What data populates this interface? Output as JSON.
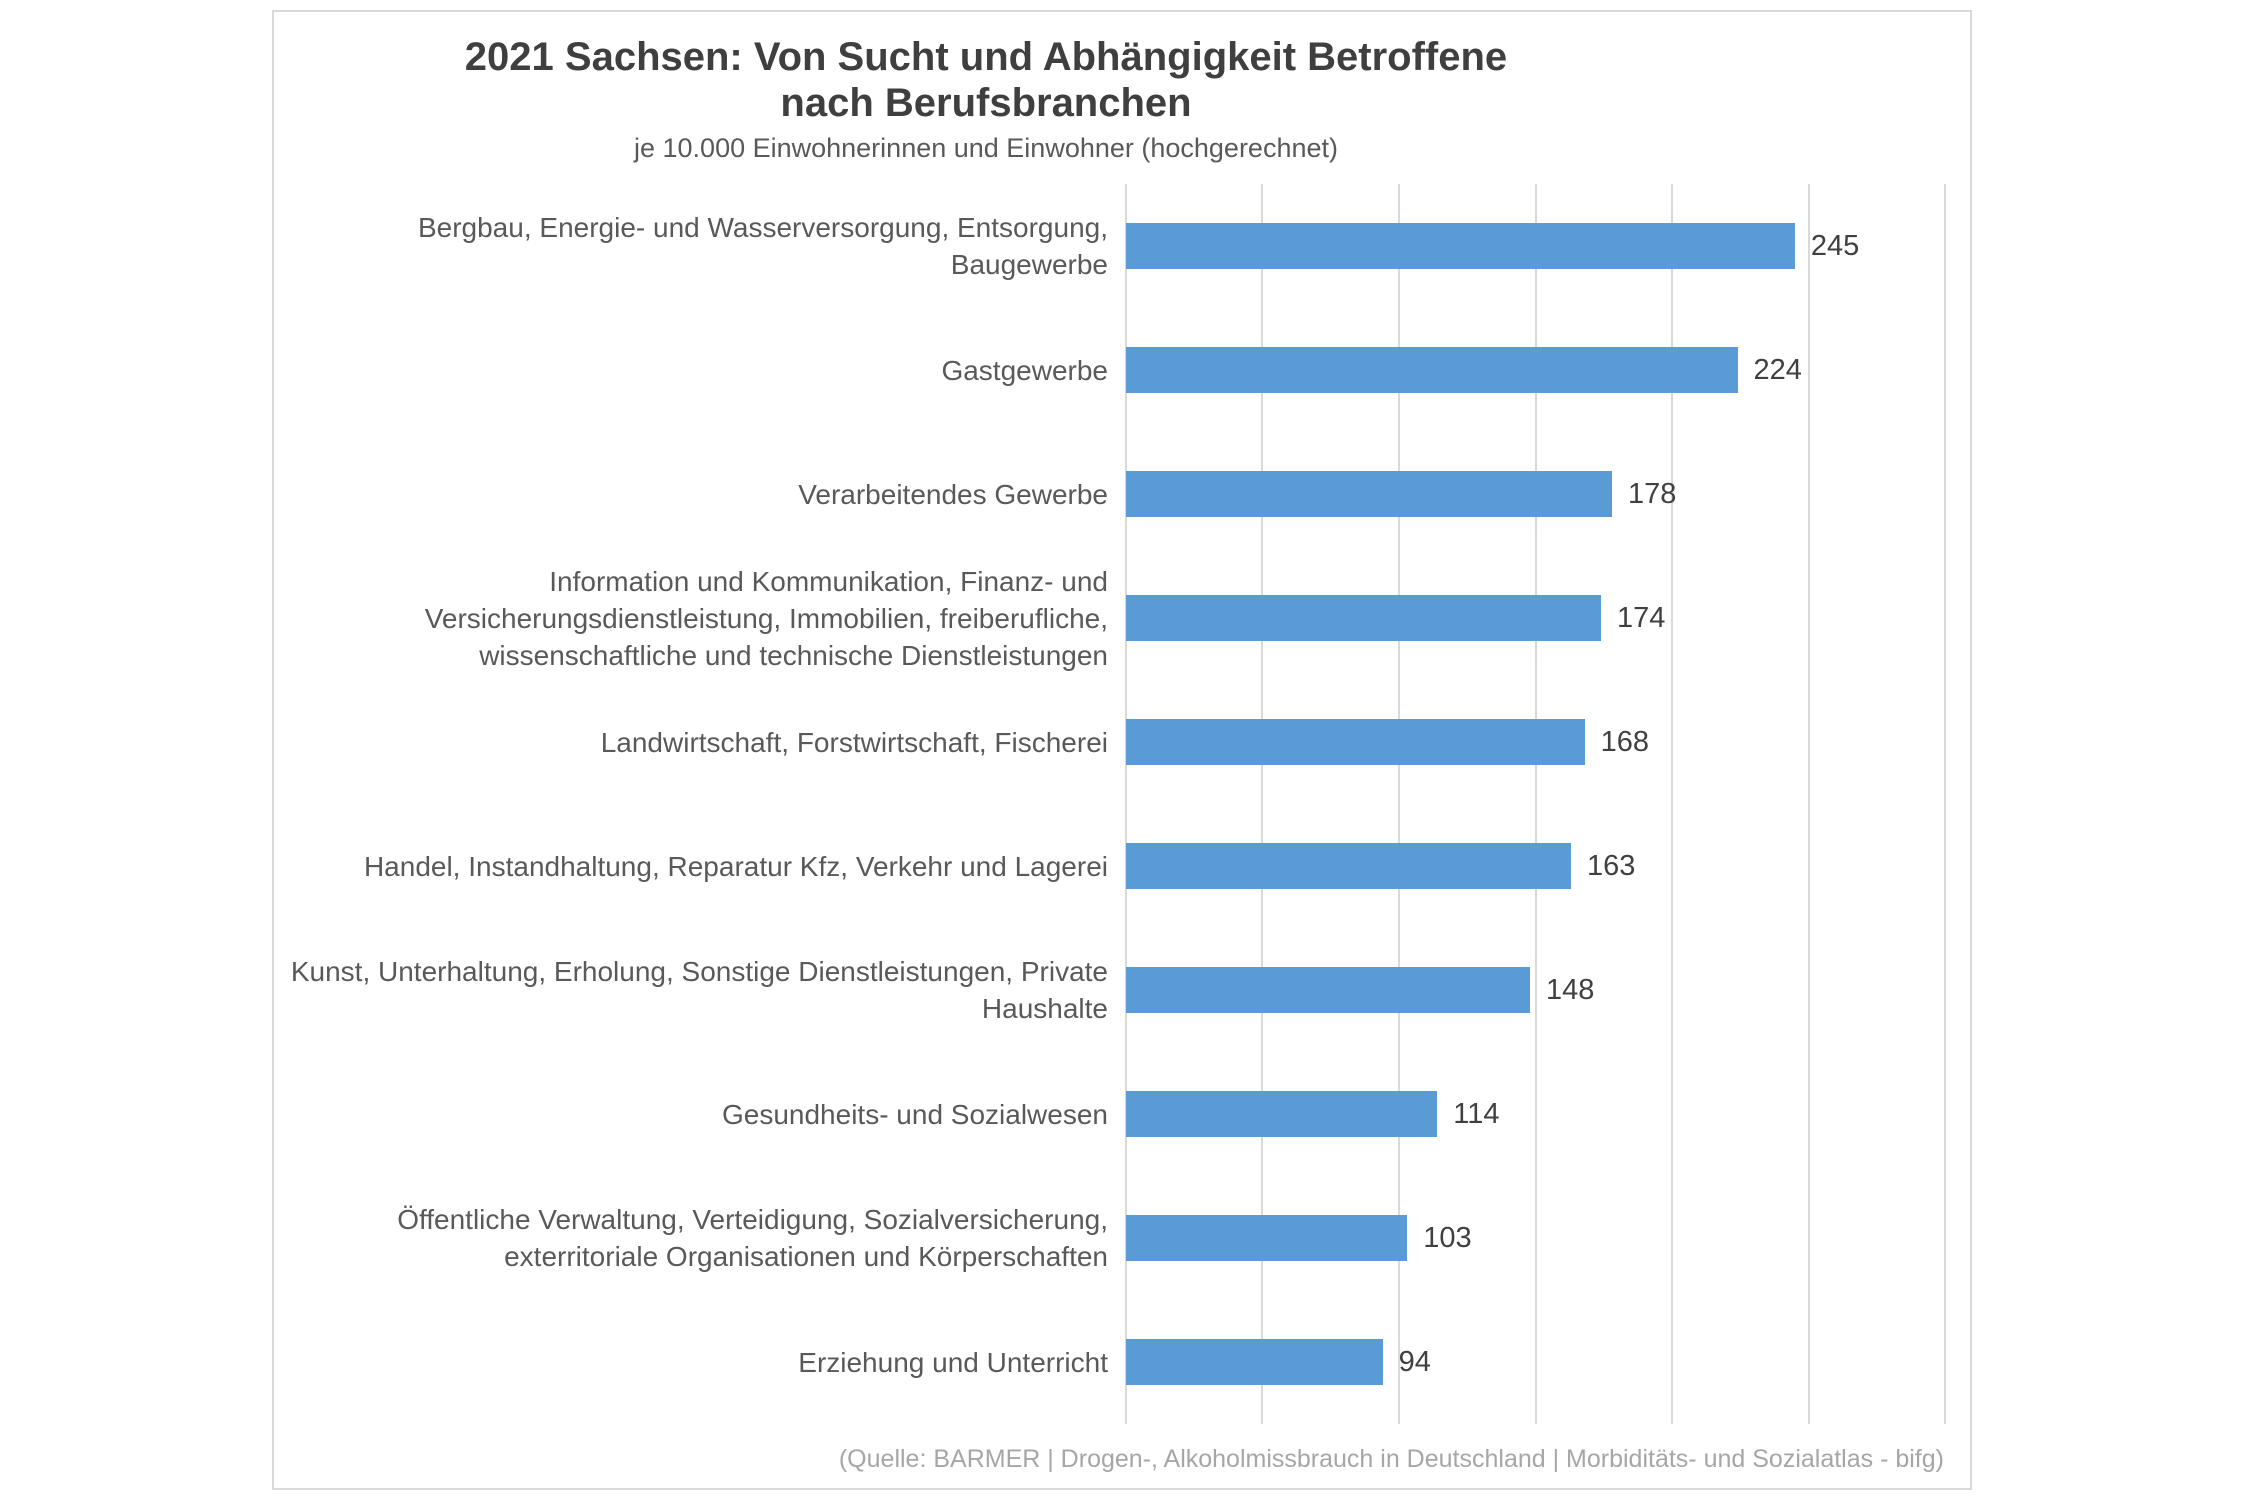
{
  "chart": {
    "title_line1": "2021 Sachsen: Von Sucht und Abhängigkeit Betroffene",
    "title_line2": "nach Berufsbranchen",
    "subtitle": "je 10.000 Einwohnerinnen und Einwohner (hochgerechnet)",
    "source": "(Quelle: BARMER | Drogen-, Alkoholmissbrauch in Deutschland | Morbiditäts- und Sozialatlas - bifg)",
    "colors": {
      "bar": "#5b9bd5",
      "grid": "#d9d9d9",
      "card_border": "#d9d9d9",
      "title_text": "#3f3f3f",
      "label_text": "#595959",
      "value_text": "#404040",
      "source_text": "#a6a6a6"
    }
  },
  "chart_data": {
    "type": "bar",
    "orientation": "horizontal",
    "title": "2021 Sachsen: Von Sucht und Abhängigkeit Betroffene nach Berufsbranchen",
    "subtitle": "je 10.000 Einwohnerinnen und Einwohner (hochgerechnet)",
    "source": "(Quelle: BARMER | Drogen-, Alkoholmissbrauch in Deutschland | Morbiditäts- und Sozialatlas - bifg)",
    "categories": [
      "Bergbau, Energie- und Wasserversorgung, Entsorgung, Baugewerbe",
      "Gastgewerbe",
      "Verarbeitendes Gewerbe",
      "Information und Kommunikation, Finanz- und Versicherungsdienstleistung, Immobilien, freiberufliche, wissenschaftliche und technische Dienstleistungen",
      "Landwirtschaft, Forstwirtschaft, Fischerei",
      "Handel, Instandhaltung, Reparatur Kfz, Verkehr und Lagerei",
      "Kunst, Unterhaltung, Erholung, Sonstige Dienstleistungen, Private Haushalte",
      "Gesundheits- und Sozialwesen",
      "Öffentliche Verwaltung, Verteidigung, Sozialversicherung, exterritoriale Organisationen und Körperschaften",
      "Erziehung und Unterricht"
    ],
    "values": [
      245,
      224,
      178,
      174,
      168,
      163,
      148,
      114,
      103,
      94
    ],
    "xlabel": "",
    "ylabel": "",
    "xlim": [
      0,
      300
    ],
    "gridline_interval": 50,
    "grid": true,
    "legend": false,
    "data_labels": true,
    "bar_color": "#5b9bd5"
  }
}
